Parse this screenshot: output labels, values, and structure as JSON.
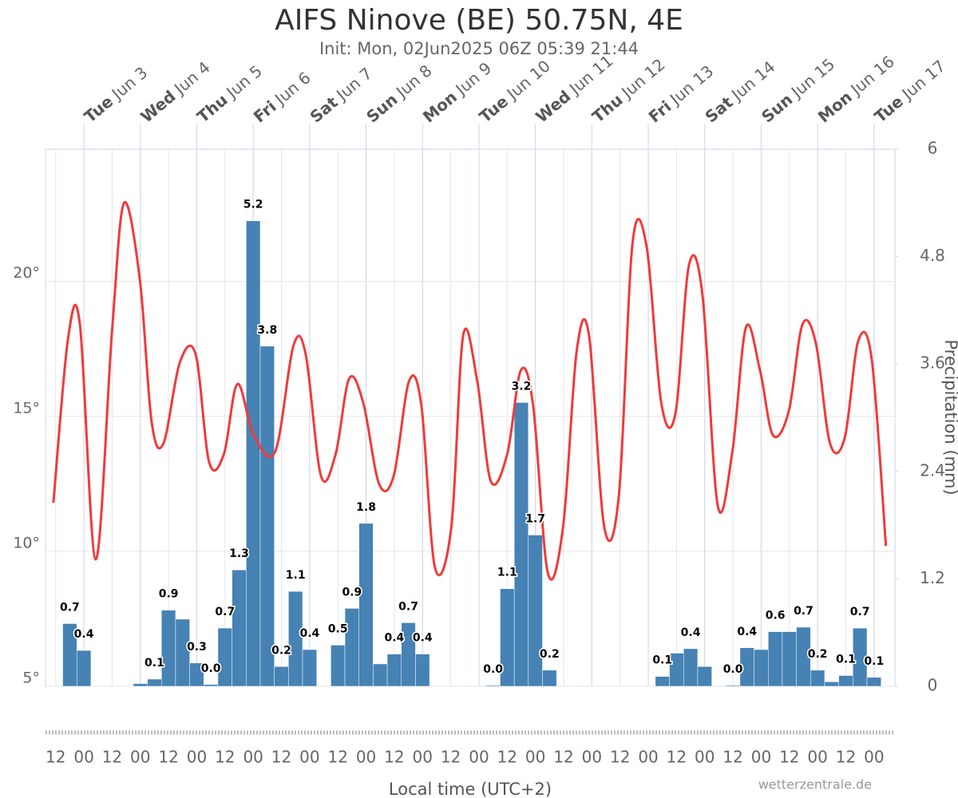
{
  "chart_data": {
    "type": "combo",
    "title": "AIFS Ninove (BE) 50.75N, 4E",
    "subtitle": "Init: Mon, 02Jun2025 06Z 05:39 21:44",
    "x_label": "Local time (UTC+2)",
    "y2_label": "Precipitation (mm)",
    "credit": "wetterzentrale.de",
    "grid": true,
    "xlim": [
      2.32,
      17.37
    ],
    "ylim": [
      5,
      24.9
    ],
    "y2lim": [
      0,
      6
    ],
    "yticks": [
      {
        "value": 5,
        "label": "5°"
      },
      {
        "value": 10,
        "label": "10°"
      },
      {
        "value": 15,
        "label": "15°"
      },
      {
        "value": 20,
        "label": "20°"
      }
    ],
    "y2ticks": [
      0,
      1.2,
      2.4,
      3.6,
      4.8,
      6
    ],
    "xticks": [
      {
        "value": 2.5,
        "label": "12"
      },
      {
        "value": 3,
        "label": "00"
      },
      {
        "value": 3.5,
        "label": "12"
      },
      {
        "value": 4,
        "label": "00"
      },
      {
        "value": 4.5,
        "label": "12"
      },
      {
        "value": 5,
        "label": "00"
      },
      {
        "value": 5.5,
        "label": "12"
      },
      {
        "value": 6,
        "label": "00"
      },
      {
        "value": 6.5,
        "label": "12"
      },
      {
        "value": 7,
        "label": "00"
      },
      {
        "value": 7.5,
        "label": "12"
      },
      {
        "value": 8,
        "label": "00"
      },
      {
        "value": 8.5,
        "label": "12"
      },
      {
        "value": 9,
        "label": "00"
      },
      {
        "value": 9.5,
        "label": "12"
      },
      {
        "value": 10,
        "label": "00"
      },
      {
        "value": 10.5,
        "label": "12"
      },
      {
        "value": 11,
        "label": "00"
      },
      {
        "value": 11.5,
        "label": "12"
      },
      {
        "value": 12,
        "label": "00"
      },
      {
        "value": 12.5,
        "label": "12"
      },
      {
        "value": 13,
        "label": "00"
      },
      {
        "value": 13.5,
        "label": "12"
      },
      {
        "value": 14,
        "label": "00"
      },
      {
        "value": 14.5,
        "label": "12"
      },
      {
        "value": 15,
        "label": "00"
      },
      {
        "value": 15.5,
        "label": "12"
      },
      {
        "value": 16,
        "label": "00"
      },
      {
        "value": 16.5,
        "label": "12"
      },
      {
        "value": 17,
        "label": "00"
      }
    ],
    "day_ticks": [
      {
        "value": 3,
        "weekday": "Tue",
        "date": "Jun 3"
      },
      {
        "value": 4,
        "weekday": "Wed",
        "date": "Jun 4"
      },
      {
        "value": 5,
        "weekday": "Thu",
        "date": "Jun 5"
      },
      {
        "value": 6,
        "weekday": "Fri",
        "date": "Jun 6"
      },
      {
        "value": 7,
        "weekday": "Sat",
        "date": "Jun 7"
      },
      {
        "value": 8,
        "weekday": "Sun",
        "date": "Jun 8"
      },
      {
        "value": 9,
        "weekday": "Mon",
        "date": "Jun 9"
      },
      {
        "value": 10,
        "weekday": "Tue",
        "date": "Jun 10"
      },
      {
        "value": 11,
        "weekday": "Wed",
        "date": "Jun 11"
      },
      {
        "value": 12,
        "weekday": "Thu",
        "date": "Jun 12"
      },
      {
        "value": 13,
        "weekday": "Fri",
        "date": "Jun 13"
      },
      {
        "value": 14,
        "weekday": "Sat",
        "date": "Jun 14"
      },
      {
        "value": 15,
        "weekday": "Sun",
        "date": "Jun 15"
      },
      {
        "value": 16,
        "weekday": "Mon",
        "date": "Jun 16"
      },
      {
        "value": 17,
        "weekday": "Tue",
        "date": "Jun 17"
      }
    ],
    "series": [
      {
        "type": "bar",
        "axis": "y2",
        "color": "#4682b4",
        "x": [
          2.75,
          3.0,
          4.0,
          4.25,
          4.5,
          4.75,
          5.0,
          5.25,
          5.5,
          5.75,
          6.0,
          6.25,
          6.5,
          6.75,
          7.0,
          7.5,
          7.75,
          8.0,
          8.25,
          8.5,
          8.75,
          9.0,
          10.25,
          10.5,
          10.75,
          11.0,
          11.25,
          13.25,
          13.5,
          13.75,
          14.0,
          14.5,
          14.75,
          15.0,
          15.25,
          15.5,
          15.75,
          16.0,
          16.25,
          16.5,
          16.75,
          17.0
        ],
        "values": [
          0.7,
          0.4,
          0.03,
          0.08,
          0.85,
          0.75,
          0.26,
          0.02,
          0.65,
          1.3,
          5.2,
          3.8,
          0.22,
          1.06,
          0.41,
          0.46,
          0.87,
          1.82,
          0.25,
          0.36,
          0.71,
          0.36,
          0.01,
          1.09,
          3.17,
          1.69,
          0.18,
          0.11,
          0.37,
          0.42,
          0.22,
          0.01,
          0.43,
          0.41,
          0.61,
          0.61,
          0.66,
          0.18,
          0.05,
          0.12,
          0.65,
          0.1
        ],
        "value_labels": [
          "0.7",
          "0.4",
          null,
          "0.1",
          "0.9",
          null,
          "0.3",
          "0.0",
          "0.7",
          "1.3",
          "5.2",
          "3.8",
          "0.2",
          "1.1",
          "0.4",
          "0.5",
          "0.9",
          "1.8",
          null,
          "0.4",
          "0.7",
          "0.4",
          "0.0",
          "1.1",
          "3.2",
          "1.7",
          "0.2",
          "0.1",
          null,
          "0.4",
          null,
          "0.0",
          "0.4",
          null,
          "0.6",
          null,
          "0.7",
          "0.2",
          null,
          "0.1",
          "0.7",
          "0.1"
        ]
      },
      {
        "type": "line",
        "axis": "y",
        "color": "#f03a3a",
        "x": [
          2.46,
          2.72,
          2.93,
          3.21,
          3.5,
          3.71,
          3.99,
          4.2,
          4.41,
          4.7,
          4.98,
          5.22,
          5.48,
          5.72,
          6.01,
          6.39,
          6.71,
          6.93,
          7.2,
          7.46,
          7.7,
          7.95,
          8.23,
          8.49,
          8.76,
          8.98,
          9.22,
          9.51,
          9.72,
          9.97,
          10.21,
          10.5,
          10.74,
          10.96,
          11.22,
          11.49,
          11.73,
          11.95,
          12.22,
          12.48,
          12.72,
          12.97,
          13.23,
          13.48,
          13.72,
          13.96,
          14.23,
          14.49,
          14.73,
          14.98,
          15.21,
          15.49,
          15.73,
          15.97,
          16.22,
          16.48,
          16.72,
          16.96,
          17.21
        ],
        "values": [
          11.8,
          17.9,
          18.4,
          9.7,
          18.2,
          22.9,
          20.1,
          14.8,
          14.0,
          17.0,
          17.3,
          13.3,
          13.6,
          16.2,
          14.3,
          13.7,
          17.6,
          17.3,
          12.8,
          13.6,
          16.4,
          15.5,
          12.5,
          12.8,
          16.3,
          15.4,
          9.4,
          10.9,
          18.0,
          16.3,
          12.6,
          13.6,
          16.7,
          15.4,
          9.2,
          10.9,
          17.4,
          18.0,
          10.9,
          12.1,
          21.4,
          21.3,
          15.5,
          15.1,
          20.6,
          19.5,
          11.7,
          13.7,
          18.3,
          16.7,
          14.3,
          15.2,
          18.4,
          17.7,
          14.0,
          14.2,
          17.8,
          17.1,
          10.2
        ]
      }
    ]
  }
}
